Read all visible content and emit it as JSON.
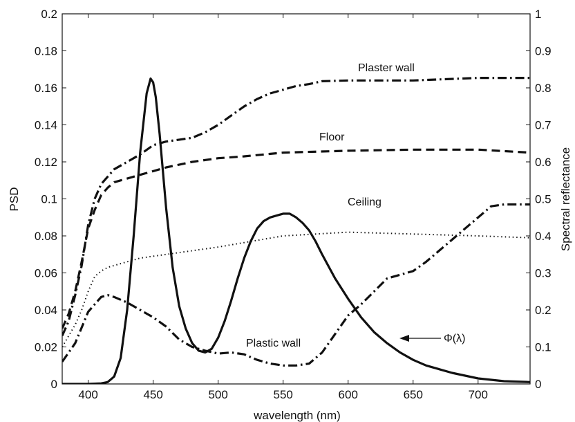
{
  "chart_data": {
    "type": "line",
    "xlabel": "wavelength (nm)",
    "ylabel_left": "PSD",
    "ylabel_right": "Spectral reflectance",
    "xlim": [
      380,
      740
    ],
    "ylim_left": [
      0,
      0.2
    ],
    "ylim_right": [
      0,
      1
    ],
    "x_ticks": [
      400,
      450,
      500,
      550,
      600,
      650,
      700
    ],
    "y_left_ticks": [
      0,
      0.02,
      0.04,
      0.06,
      0.08,
      0.1,
      0.12,
      0.14,
      0.16,
      0.18,
      0.2
    ],
    "y_right_ticks": [
      0,
      0.1,
      0.2,
      0.3,
      0.4,
      0.5,
      0.6,
      0.7,
      0.8,
      0.9,
      1
    ],
    "grid": false,
    "series": [
      {
        "name": "Φ(λ)",
        "axis": "left",
        "style": "solid",
        "x": [
          380,
          400,
          410,
          415,
          420,
          425,
          430,
          435,
          440,
          445,
          448,
          450,
          452,
          455,
          460,
          465,
          470,
          475,
          480,
          485,
          490,
          495,
          500,
          505,
          510,
          515,
          520,
          525,
          530,
          535,
          540,
          545,
          550,
          555,
          560,
          565,
          570,
          575,
          580,
          590,
          600,
          610,
          620,
          630,
          640,
          650,
          660,
          680,
          700,
          720,
          740
        ],
        "y": [
          0,
          0,
          0.0003,
          0.001,
          0.004,
          0.014,
          0.04,
          0.08,
          0.125,
          0.157,
          0.165,
          0.163,
          0.155,
          0.135,
          0.095,
          0.063,
          0.042,
          0.03,
          0.022,
          0.018,
          0.017,
          0.019,
          0.025,
          0.034,
          0.045,
          0.057,
          0.068,
          0.077,
          0.084,
          0.088,
          0.09,
          0.091,
          0.092,
          0.092,
          0.09,
          0.087,
          0.083,
          0.077,
          0.07,
          0.057,
          0.046,
          0.036,
          0.028,
          0.022,
          0.017,
          0.013,
          0.01,
          0.006,
          0.003,
          0.0015,
          0.001
        ]
      },
      {
        "name": "Plaster wall",
        "axis": "right",
        "style": "dashdot",
        "x": [
          380,
          385,
          390,
          395,
          400,
          405,
          410,
          415,
          420,
          430,
          440,
          450,
          460,
          470,
          480,
          490,
          500,
          510,
          520,
          530,
          540,
          550,
          560,
          570,
          580,
          600,
          620,
          650,
          700,
          740
        ],
        "y": [
          0.13,
          0.17,
          0.24,
          0.32,
          0.43,
          0.5,
          0.54,
          0.56,
          0.58,
          0.6,
          0.62,
          0.645,
          0.655,
          0.66,
          0.665,
          0.68,
          0.7,
          0.725,
          0.75,
          0.77,
          0.785,
          0.795,
          0.805,
          0.81,
          0.818,
          0.82,
          0.82,
          0.82,
          0.827,
          0.827
        ]
      },
      {
        "name": "Floor",
        "axis": "right",
        "style": "dashed",
        "x": [
          380,
          385,
          390,
          395,
          400,
          405,
          410,
          415,
          420,
          430,
          440,
          450,
          460,
          480,
          500,
          520,
          550,
          600,
          650,
          700,
          740
        ],
        "y": [
          0.15,
          0.19,
          0.25,
          0.33,
          0.42,
          0.47,
          0.51,
          0.53,
          0.545,
          0.555,
          0.565,
          0.575,
          0.585,
          0.6,
          0.61,
          0.615,
          0.625,
          0.63,
          0.633,
          0.633,
          0.625
        ]
      },
      {
        "name": "Ceiling",
        "axis": "right",
        "style": "dotted",
        "x": [
          380,
          385,
          390,
          395,
          400,
          405,
          410,
          415,
          420,
          430,
          440,
          450,
          470,
          500,
          550,
          600,
          650,
          700,
          740
        ],
        "y": [
          0.1,
          0.13,
          0.16,
          0.2,
          0.25,
          0.29,
          0.305,
          0.315,
          0.32,
          0.33,
          0.34,
          0.345,
          0.355,
          0.37,
          0.4,
          0.41,
          0.405,
          0.4,
          0.395
        ]
      },
      {
        "name": "Plastic wall",
        "axis": "right",
        "style": "dashdot",
        "x": [
          380,
          390,
          400,
          410,
          415,
          420,
          430,
          440,
          450,
          460,
          470,
          480,
          490,
          500,
          510,
          520,
          530,
          540,
          550,
          560,
          570,
          580,
          590,
          600,
          610,
          620,
          630,
          640,
          650,
          660,
          670,
          680,
          690,
          700,
          710,
          720,
          740
        ],
        "y": [
          0.06,
          0.11,
          0.195,
          0.235,
          0.24,
          0.235,
          0.22,
          0.2,
          0.18,
          0.155,
          0.12,
          0.1,
          0.09,
          0.082,
          0.085,
          0.08,
          0.065,
          0.055,
          0.05,
          0.05,
          0.055,
          0.085,
          0.135,
          0.185,
          0.215,
          0.25,
          0.285,
          0.295,
          0.305,
          0.33,
          0.36,
          0.39,
          0.42,
          0.45,
          0.48,
          0.485,
          0.485
        ]
      }
    ],
    "annotations": [
      {
        "text": "Plaster wall",
        "series": "Plaster wall"
      },
      {
        "text": "Floor",
        "series": "Floor"
      },
      {
        "text": "Ceiling",
        "series": "Ceiling"
      },
      {
        "text": "Plastic wall",
        "series": "Plastic wall"
      },
      {
        "text": "Φ(λ)",
        "series": "Φ(λ)",
        "arrow": true
      }
    ]
  }
}
